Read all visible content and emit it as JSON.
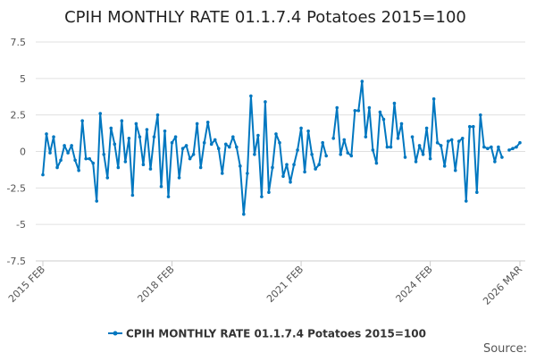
{
  "chart_data": {
    "type": "line",
    "title": "CPIH MONTHLY RATE 01.1.7.4 Potatoes 2015=100",
    "xlabel": "",
    "ylabel": "",
    "x_start": "2015 FEB",
    "x_end": "2026 MAR",
    "x_ticks": [
      {
        "label": "2015 FEB",
        "index": 0
      },
      {
        "label": "2018 FEB",
        "index": 36
      },
      {
        "label": "2021 FEB",
        "index": 72
      },
      {
        "label": "2024 FEB",
        "index": 108
      },
      {
        "label": "2026 MAR",
        "index": 133
      }
    ],
    "ylim": [
      -7.5,
      7.5
    ],
    "y_ticks": [
      7.5,
      5,
      2.5,
      0,
      -2.5,
      -5,
      -7.5
    ],
    "y_tick_labels": [
      "7.5",
      "5",
      "2.5",
      "0",
      "-2.5",
      "-5",
      "-7.5"
    ],
    "grid": true,
    "legend_position": "bottom",
    "series": [
      {
        "name": "CPIH MONTHLY RATE 01.1.7.4 Potatoes 2015=100",
        "color": "#0077c0",
        "values": [
          -1.6,
          1.2,
          -0.1,
          1.0,
          -1.1,
          -0.6,
          0.4,
          -0.1,
          0.4,
          -0.6,
          -1.3,
          2.1,
          -0.5,
          -0.5,
          -0.8,
          -3.4,
          2.6,
          -0.2,
          -1.8,
          1.6,
          0.5,
          -1.1,
          2.1,
          -0.7,
          0.9,
          -3.0,
          1.9,
          1.0,
          -0.9,
          1.5,
          -1.2,
          1.0,
          2.5,
          -2.4,
          1.4,
          -3.1,
          0.6,
          1.0,
          -1.8,
          0.2,
          0.4,
          -0.5,
          -0.2,
          1.9,
          -1.1,
          0.6,
          2.0,
          0.5,
          0.8,
          0.2,
          -1.5,
          0.5,
          0.3,
          1.0,
          0.3,
          -1.0,
          -4.3,
          -1.5,
          3.8,
          -0.2,
          1.1,
          -3.1,
          3.4,
          -2.8,
          -1.1,
          1.2,
          0.6,
          -1.7,
          -0.9,
          -2.1,
          -0.9,
          0.1,
          1.6,
          -1.4,
          1.4,
          -0.2,
          -1.2,
          -0.9,
          0.6,
          -0.3,
          null,
          0.9,
          3.0,
          -0.2,
          0.8,
          -0.1,
          -0.3,
          2.8,
          2.8,
          4.8,
          1.0,
          3.0,
          0.1,
          -0.8,
          2.7,
          2.2,
          0.3,
          0.3,
          3.3,
          0.9,
          1.9,
          -0.4,
          null,
          1.0,
          -0.7,
          0.4,
          -0.2,
          1.6,
          -0.5,
          3.6,
          0.6,
          0.4,
          -1.0,
          0.7,
          0.8,
          -1.3,
          0.7,
          0.9,
          -3.4,
          1.7,
          1.7,
          -2.8,
          2.5,
          0.3,
          0.2,
          0.3,
          -0.7,
          0.3,
          -0.4,
          null,
          0.1,
          0.2,
          0.3,
          0.6
        ]
      }
    ]
  },
  "legend": {
    "label": "CPIH MONTHLY RATE 01.1.7.4 Potatoes 2015=100"
  },
  "source_label": "Source:"
}
